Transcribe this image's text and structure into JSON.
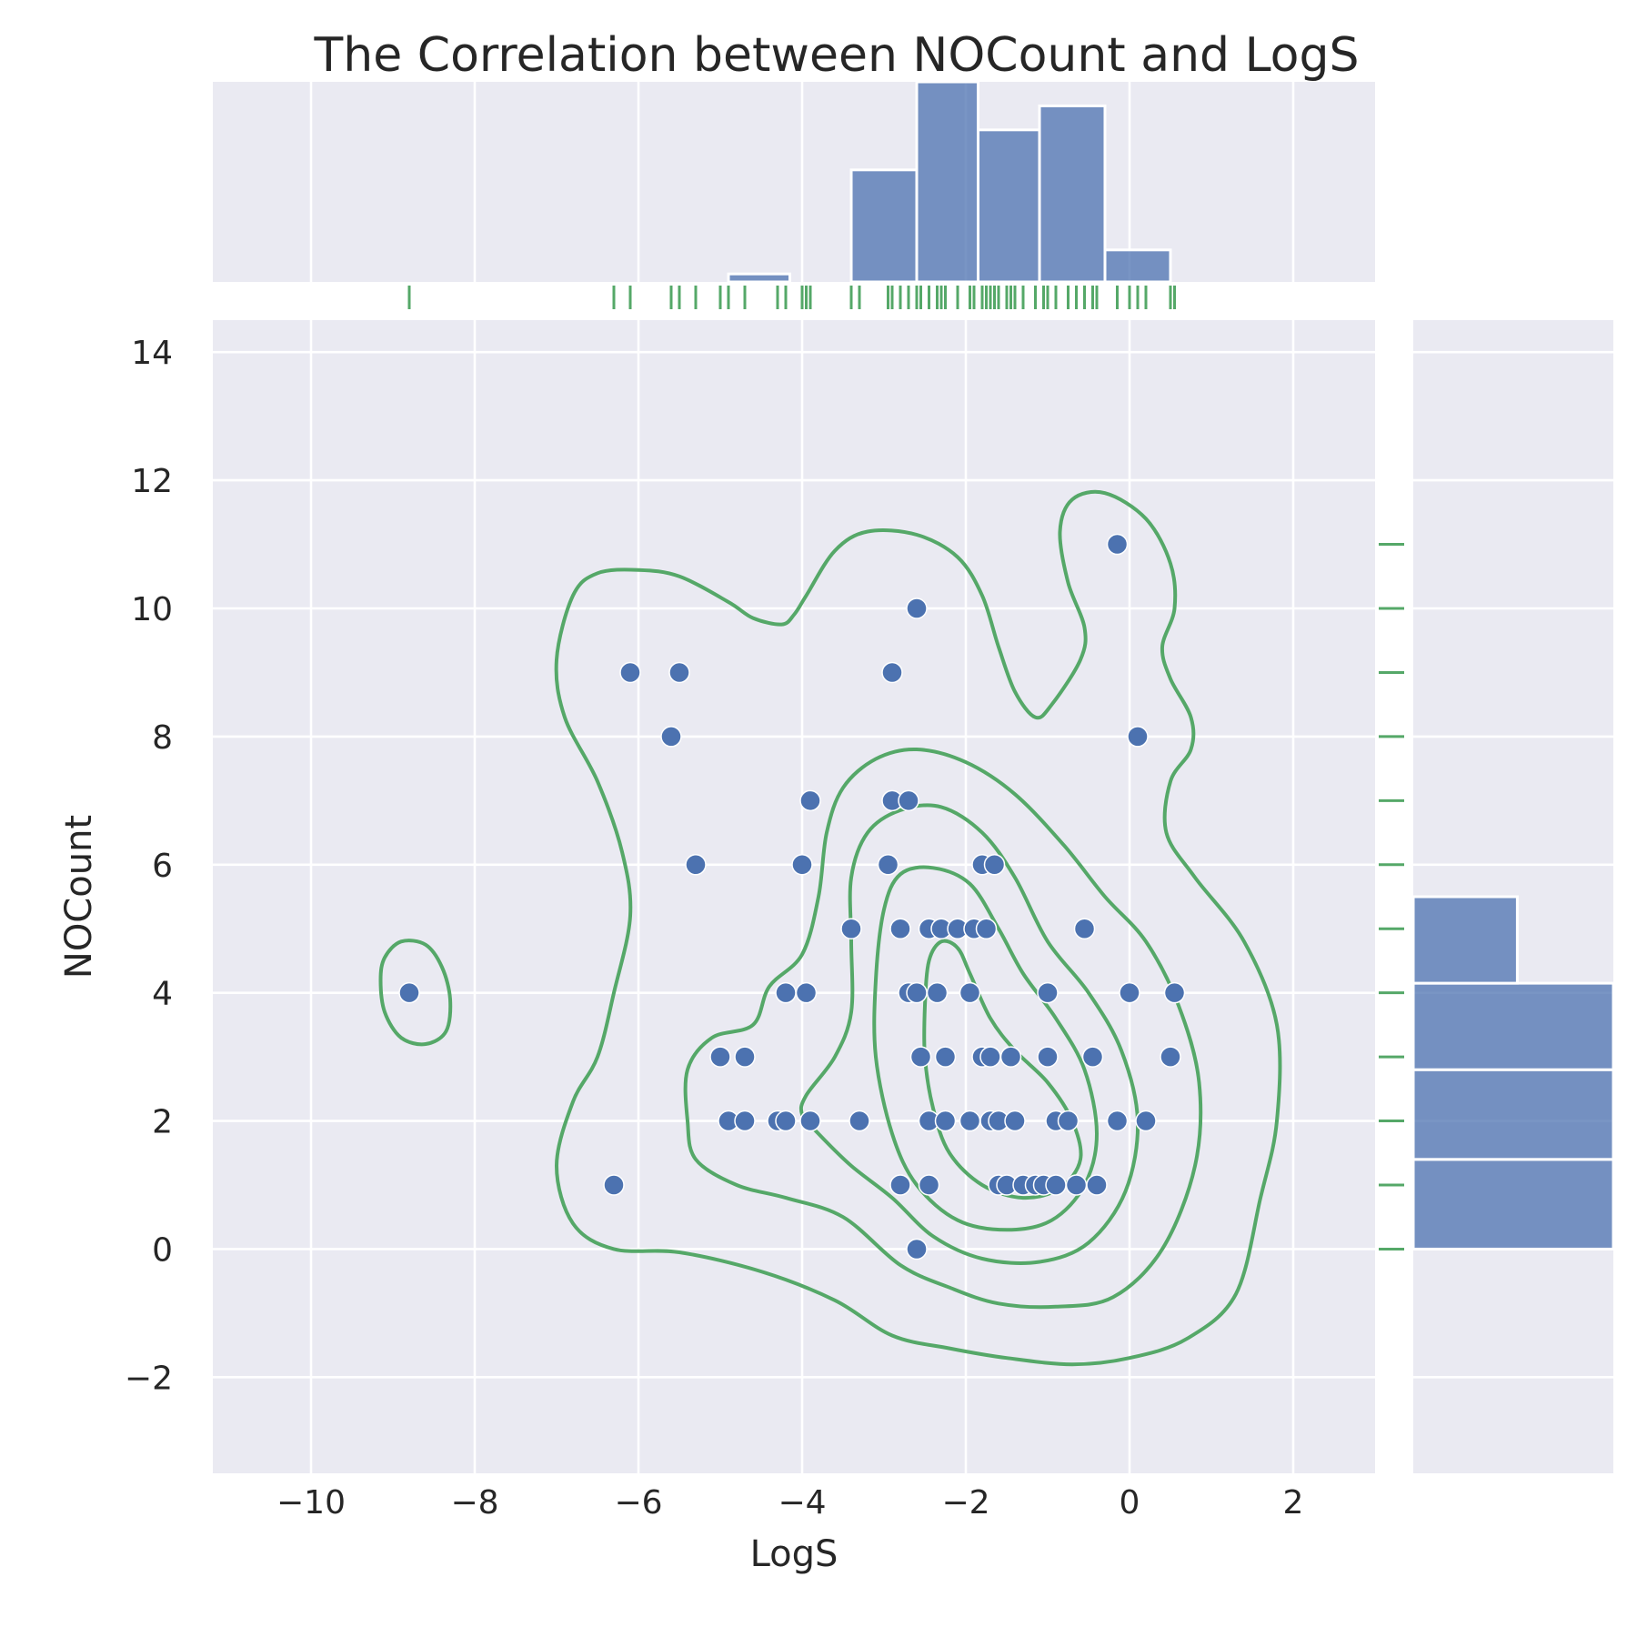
{
  "chart_data": {
    "type": "scatter",
    "title": "The Correlation between NOCount and LogS",
    "xlabel": "LogS",
    "ylabel": "NOCount",
    "xlim": [
      -11.2,
      3.0
    ],
    "ylim": [
      -3.5,
      14.5
    ],
    "xticks": [
      -10,
      -8,
      -6,
      -4,
      -2,
      0,
      2
    ],
    "yticks": [
      -2,
      0,
      2,
      4,
      6,
      8,
      10,
      12,
      14
    ],
    "xtick_labels": [
      "−10",
      "−8",
      "−6",
      "−4",
      "−2",
      "0",
      "2"
    ],
    "ytick_labels": [
      "−2",
      "0",
      "2",
      "4",
      "6",
      "8",
      "10",
      "12",
      "14"
    ],
    "grid": true,
    "colors": {
      "points": "#4c72b0",
      "bars": "#4c72b0",
      "rug": "#55a868",
      "contour": "#55a868",
      "panel": "#eaeaf2"
    },
    "points": [
      [
        -8.8,
        4
      ],
      [
        -6.3,
        1
      ],
      [
        -6.1,
        9
      ],
      [
        -5.5,
        9
      ],
      [
        -5.6,
        8
      ],
      [
        -5.3,
        6
      ],
      [
        -5.0,
        3
      ],
      [
        -4.7,
        3
      ],
      [
        -4.9,
        2
      ],
      [
        -4.7,
        2
      ],
      [
        -4.3,
        2
      ],
      [
        -4.2,
        2
      ],
      [
        -4.2,
        4
      ],
      [
        -3.95,
        4
      ],
      [
        -4.0,
        6
      ],
      [
        -3.9,
        7
      ],
      [
        -3.9,
        2
      ],
      [
        -3.4,
        5
      ],
      [
        -3.3,
        2
      ],
      [
        -2.9,
        7
      ],
      [
        -2.7,
        7
      ],
      [
        -2.9,
        9
      ],
      [
        -2.6,
        10
      ],
      [
        -2.95,
        6
      ],
      [
        -2.8,
        5
      ],
      [
        -2.8,
        1
      ],
      [
        -2.7,
        4
      ],
      [
        -2.6,
        4
      ],
      [
        -2.55,
        3
      ],
      [
        -2.45,
        2
      ],
      [
        -2.45,
        1
      ],
      [
        -2.6,
        0
      ],
      [
        -2.45,
        5
      ],
      [
        -2.35,
        4
      ],
      [
        -2.3,
        5
      ],
      [
        -2.25,
        3
      ],
      [
        -2.25,
        2
      ],
      [
        -2.1,
        5
      ],
      [
        -1.95,
        4
      ],
      [
        -1.95,
        2
      ],
      [
        -1.9,
        5
      ],
      [
        -1.8,
        6
      ],
      [
        -1.8,
        3
      ],
      [
        -1.75,
        5
      ],
      [
        -1.7,
        3
      ],
      [
        -1.65,
        6
      ],
      [
        -1.7,
        2
      ],
      [
        -1.6,
        2
      ],
      [
        -1.6,
        1
      ],
      [
        -1.5,
        1
      ],
      [
        -1.45,
        3
      ],
      [
        -1.4,
        2
      ],
      [
        -1.3,
        1
      ],
      [
        -1.15,
        1
      ],
      [
        -1.05,
        1
      ],
      [
        -1.0,
        4
      ],
      [
        -1.0,
        3
      ],
      [
        -0.9,
        2
      ],
      [
        -0.9,
        1
      ],
      [
        -0.75,
        2
      ],
      [
        -0.65,
        1
      ],
      [
        -0.55,
        5
      ],
      [
        -0.45,
        3
      ],
      [
        -0.4,
        1
      ],
      [
        -0.15,
        11
      ],
      [
        -0.15,
        2
      ],
      [
        0.0,
        4
      ],
      [
        0.1,
        8
      ],
      [
        0.2,
        2
      ],
      [
        0.5,
        3
      ],
      [
        0.55,
        4
      ]
    ],
    "x_histogram": {
      "bins": [
        [
          -4.9,
          -4.15,
          1
        ],
        [
          -4.15,
          -3.4,
          0
        ],
        [
          -3.4,
          -2.6,
          14
        ],
        [
          -2.6,
          -1.85,
          25
        ],
        [
          -1.85,
          -1.1,
          19
        ],
        [
          -1.1,
          -0.3,
          22
        ],
        [
          -0.3,
          0.5,
          4
        ]
      ],
      "max_count": 25
    },
    "y_histogram": {
      "bins": [
        [
          0,
          1.4,
          25
        ],
        [
          1.4,
          2.8,
          25
        ],
        [
          2.8,
          4.15,
          25
        ],
        [
          4.15,
          5.5,
          13
        ]
      ],
      "max_count": 25
    },
    "kde_contours": [
      [
        [
          -9.15,
          4.2
        ],
        [
          -9.1,
          4.55
        ],
        [
          -8.9,
          4.8
        ],
        [
          -8.6,
          4.75
        ],
        [
          -8.4,
          4.4
        ],
        [
          -8.3,
          3.9
        ],
        [
          -8.35,
          3.4
        ],
        [
          -8.6,
          3.2
        ],
        [
          -8.9,
          3.3
        ],
        [
          -9.1,
          3.7
        ],
        [
          -9.15,
          4.2
        ]
      ],
      [
        [
          -7.0,
          9.2
        ],
        [
          -6.8,
          10.2
        ],
        [
          -6.5,
          10.55
        ],
        [
          -6.0,
          10.6
        ],
        [
          -5.5,
          10.5
        ],
        [
          -4.9,
          10.1
        ],
        [
          -4.6,
          9.85
        ],
        [
          -4.25,
          9.75
        ],
        [
          -4.1,
          9.9
        ],
        [
          -3.95,
          10.2
        ],
        [
          -3.6,
          10.9
        ],
        [
          -3.2,
          11.2
        ],
        [
          -2.6,
          11.15
        ],
        [
          -2.1,
          10.8
        ],
        [
          -1.8,
          10.2
        ],
        [
          -1.6,
          9.4
        ],
        [
          -1.4,
          8.7
        ],
        [
          -1.15,
          8.3
        ],
        [
          -0.95,
          8.5
        ],
        [
          -0.6,
          9.2
        ],
        [
          -0.55,
          9.7
        ],
        [
          -0.75,
          10.4
        ],
        [
          -0.85,
          11.2
        ],
        [
          -0.7,
          11.7
        ],
        [
          -0.3,
          11.8
        ],
        [
          0.2,
          11.4
        ],
        [
          0.5,
          10.7
        ],
        [
          0.55,
          10.0
        ],
        [
          0.4,
          9.4
        ],
        [
          0.5,
          8.9
        ],
        [
          0.75,
          8.3
        ],
        [
          0.75,
          7.8
        ],
        [
          0.5,
          7.3
        ],
        [
          0.45,
          6.5
        ],
        [
          0.8,
          5.8
        ],
        [
          1.4,
          4.8
        ],
        [
          1.8,
          3.5
        ],
        [
          1.8,
          2.0
        ],
        [
          1.6,
          0.8
        ],
        [
          1.3,
          -0.7
        ],
        [
          0.7,
          -1.4
        ],
        [
          0.0,
          -1.7
        ],
        [
          -0.7,
          -1.8
        ],
        [
          -1.5,
          -1.7
        ],
        [
          -2.2,
          -1.55
        ],
        [
          -2.9,
          -1.35
        ],
        [
          -3.6,
          -0.8
        ],
        [
          -4.5,
          -0.35
        ],
        [
          -5.5,
          -0.05
        ],
        [
          -6.3,
          0.0
        ],
        [
          -6.8,
          0.4
        ],
        [
          -7.0,
          1.3
        ],
        [
          -6.8,
          2.3
        ],
        [
          -6.5,
          3.0
        ],
        [
          -6.3,
          4.0
        ],
        [
          -6.1,
          5.2
        ],
        [
          -6.2,
          6.2
        ],
        [
          -6.5,
          7.3
        ],
        [
          -6.9,
          8.3
        ],
        [
          -7.0,
          9.2
        ]
      ],
      [
        [
          -4.6,
          3.5
        ],
        [
          -4.4,
          4.1
        ],
        [
          -4.0,
          4.6
        ],
        [
          -3.8,
          5.5
        ],
        [
          -3.7,
          6.5
        ],
        [
          -3.5,
          7.2
        ],
        [
          -3.1,
          7.65
        ],
        [
          -2.6,
          7.8
        ],
        [
          -2.0,
          7.6
        ],
        [
          -1.4,
          7.1
        ],
        [
          -0.8,
          6.3
        ],
        [
          -0.3,
          5.5
        ],
        [
          0.2,
          4.8
        ],
        [
          0.6,
          3.8
        ],
        [
          0.85,
          2.6
        ],
        [
          0.8,
          1.3
        ],
        [
          0.4,
          0.0
        ],
        [
          -0.2,
          -0.75
        ],
        [
          -0.9,
          -0.9
        ],
        [
          -1.6,
          -0.85
        ],
        [
          -2.2,
          -0.6
        ],
        [
          -2.8,
          -0.25
        ],
        [
          -3.5,
          0.5
        ],
        [
          -4.2,
          0.8
        ],
        [
          -4.8,
          1.0
        ],
        [
          -5.3,
          1.4
        ],
        [
          -5.4,
          2.0
        ],
        [
          -5.4,
          2.8
        ],
        [
          -5.1,
          3.3
        ],
        [
          -4.6,
          3.5
        ]
      ],
      [
        [
          -3.95,
          2.4
        ],
        [
          -3.6,
          3.0
        ],
        [
          -3.4,
          3.7
        ],
        [
          -3.4,
          4.8
        ],
        [
          -3.4,
          5.8
        ],
        [
          -3.2,
          6.5
        ],
        [
          -2.8,
          6.85
        ],
        [
          -2.3,
          6.9
        ],
        [
          -1.8,
          6.5
        ],
        [
          -1.4,
          5.8
        ],
        [
          -1.0,
          4.8
        ],
        [
          -0.5,
          4.0
        ],
        [
          -0.1,
          3.1
        ],
        [
          0.1,
          2.0
        ],
        [
          -0.05,
          0.9
        ],
        [
          -0.5,
          0.1
        ],
        [
          -1.1,
          -0.2
        ],
        [
          -1.8,
          -0.15
        ],
        [
          -2.4,
          0.2
        ],
        [
          -2.9,
          0.8
        ],
        [
          -3.4,
          1.3
        ],
        [
          -3.8,
          1.8
        ],
        [
          -4.0,
          2.1
        ],
        [
          -3.95,
          2.4
        ]
      ],
      [
        [
          -3.1,
          4.2
        ],
        [
          -3.0,
          5.3
        ],
        [
          -2.8,
          5.85
        ],
        [
          -2.4,
          5.95
        ],
        [
          -1.95,
          5.7
        ],
        [
          -1.6,
          5.0
        ],
        [
          -1.3,
          4.3
        ],
        [
          -0.9,
          3.6
        ],
        [
          -0.55,
          2.8
        ],
        [
          -0.4,
          1.8
        ],
        [
          -0.55,
          1.0
        ],
        [
          -0.95,
          0.45
        ],
        [
          -1.5,
          0.3
        ],
        [
          -2.1,
          0.45
        ],
        [
          -2.6,
          1.0
        ],
        [
          -2.9,
          1.8
        ],
        [
          -3.1,
          3.0
        ],
        [
          -3.1,
          4.2
        ]
      ],
      [
        [
          -2.45,
          4.5
        ],
        [
          -2.3,
          4.8
        ],
        [
          -2.1,
          4.7
        ],
        [
          -1.95,
          4.3
        ],
        [
          -1.7,
          3.6
        ],
        [
          -1.4,
          3.1
        ],
        [
          -1.0,
          2.6
        ],
        [
          -0.7,
          2.0
        ],
        [
          -0.6,
          1.4
        ],
        [
          -0.85,
          0.95
        ],
        [
          -1.3,
          0.8
        ],
        [
          -1.8,
          1.0
        ],
        [
          -2.2,
          1.5
        ],
        [
          -2.4,
          2.2
        ],
        [
          -2.5,
          3.0
        ],
        [
          -2.5,
          3.8
        ],
        [
          -2.45,
          4.5
        ]
      ]
    ]
  }
}
